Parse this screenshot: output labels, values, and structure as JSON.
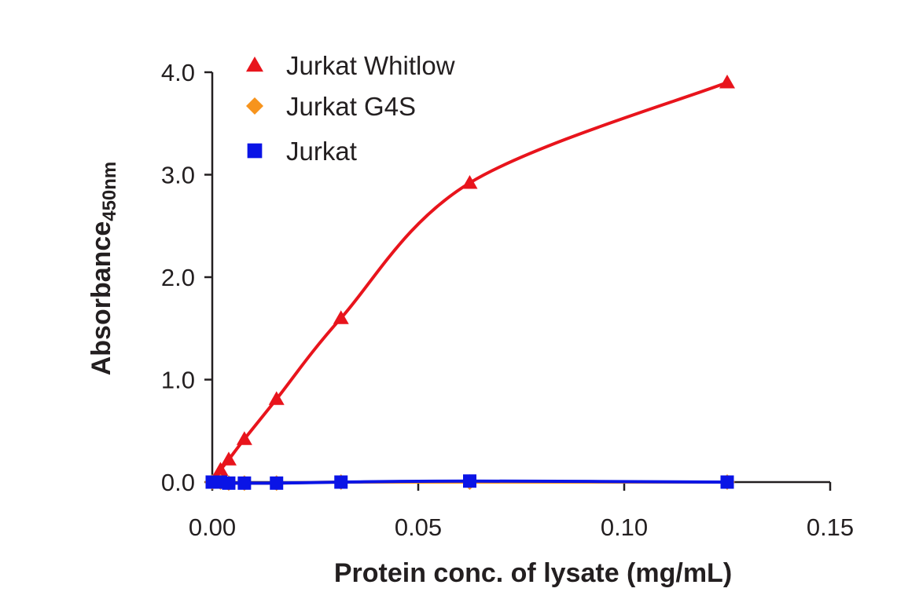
{
  "chart_data": {
    "type": "line",
    "title": "",
    "xlabel": "Protein conc. of lysate (mg/mL)",
    "ylabel_main": "Absorbance",
    "ylabel_sub": "450nm",
    "xlim": [
      0,
      0.15
    ],
    "ylim": [
      0,
      4.0
    ],
    "x_ticks": [
      0.0,
      0.05,
      0.1,
      0.15
    ],
    "x_tick_labels": [
      "0.00",
      "0.05",
      "0.10",
      "0.15"
    ],
    "y_ticks": [
      0.0,
      1.0,
      2.0,
      3.0,
      4.0
    ],
    "y_tick_labels": [
      "0.0",
      "1.0",
      "2.0",
      "3.0",
      "4.0"
    ],
    "grid": false,
    "legend_position": "top-left",
    "series": [
      {
        "name": "Jurkat Whitlow",
        "marker": "triangle",
        "color": "#e8141c",
        "x": [
          0.002,
          0.004,
          0.0078,
          0.0156,
          0.03125,
          0.0625,
          0.125
        ],
        "y": [
          0.12,
          0.22,
          0.42,
          0.81,
          1.6,
          2.92,
          3.9
        ]
      },
      {
        "name": "Jurkat G4S",
        "marker": "diamond",
        "color": "#f7941d",
        "x": [
          0.0,
          0.002,
          0.004,
          0.0078,
          0.0156,
          0.03125,
          0.0625,
          0.125
        ],
        "y": [
          0.0,
          0.0,
          -0.01,
          -0.01,
          -0.01,
          0.0,
          0.0,
          0.0
        ]
      },
      {
        "name": "Jurkat",
        "marker": "square",
        "color": "#0a14e6",
        "x": [
          0.0,
          0.002,
          0.004,
          0.0078,
          0.0156,
          0.03125,
          0.0625,
          0.125
        ],
        "y": [
          0.0,
          0.0,
          -0.01,
          -0.01,
          -0.01,
          0.0,
          0.01,
          0.0
        ]
      }
    ]
  }
}
